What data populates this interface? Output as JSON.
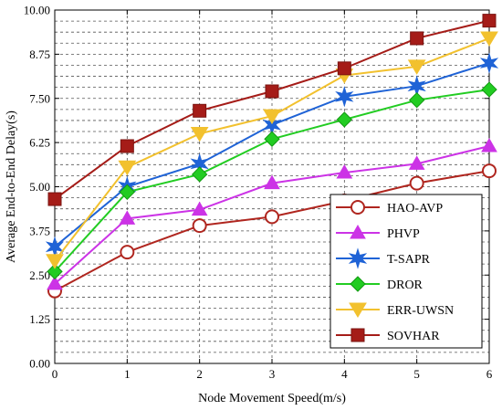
{
  "chart_data": {
    "type": "line",
    "xlabel": "Node Movement Speed(m/s)",
    "ylabel": "Average End-to-End Delay(s)",
    "x": [
      0,
      1,
      2,
      3,
      4,
      5,
      6
    ],
    "x_ticks": [
      "0",
      "1",
      "2",
      "3",
      "4",
      "5",
      "6"
    ],
    "xlim": [
      0,
      6
    ],
    "ylim": [
      0,
      10
    ],
    "y_ticks": [
      "0.00",
      "1.25",
      "2.50",
      "3.75",
      "5.00",
      "6.25",
      "7.50",
      "8.75",
      "10.00"
    ],
    "grid": true,
    "legend_position": "bottom-right",
    "series": [
      {
        "name": "HAO-AVP",
        "color": "#b0261f",
        "marker": "circle-open",
        "values": [
          2.05,
          3.15,
          3.9,
          4.15,
          4.6,
          5.1,
          5.45
        ]
      },
      {
        "name": "PHVP",
        "color": "#cc33e6",
        "marker": "triangle-up",
        "values": [
          2.25,
          4.1,
          4.35,
          5.1,
          5.4,
          5.65,
          6.15
        ]
      },
      {
        "name": "T-SAPR",
        "color": "#1f63d6",
        "marker": "star",
        "values": [
          3.3,
          5.0,
          5.65,
          6.75,
          7.55,
          7.85,
          8.5
        ]
      },
      {
        "name": "DROR",
        "color": "#22cc22",
        "marker": "diamond",
        "values": [
          2.6,
          4.85,
          5.35,
          6.35,
          6.9,
          7.45,
          7.75
        ]
      },
      {
        "name": "ERR-UWSN",
        "color": "#f2c12e",
        "marker": "triangle-down",
        "values": [
          2.9,
          5.55,
          6.5,
          7.0,
          8.15,
          8.4,
          9.2
        ]
      },
      {
        "name": "SOVHAR",
        "color": "#a51c18",
        "marker": "square",
        "values": [
          4.65,
          6.15,
          7.15,
          7.7,
          8.35,
          9.2,
          9.7
        ]
      }
    ]
  }
}
